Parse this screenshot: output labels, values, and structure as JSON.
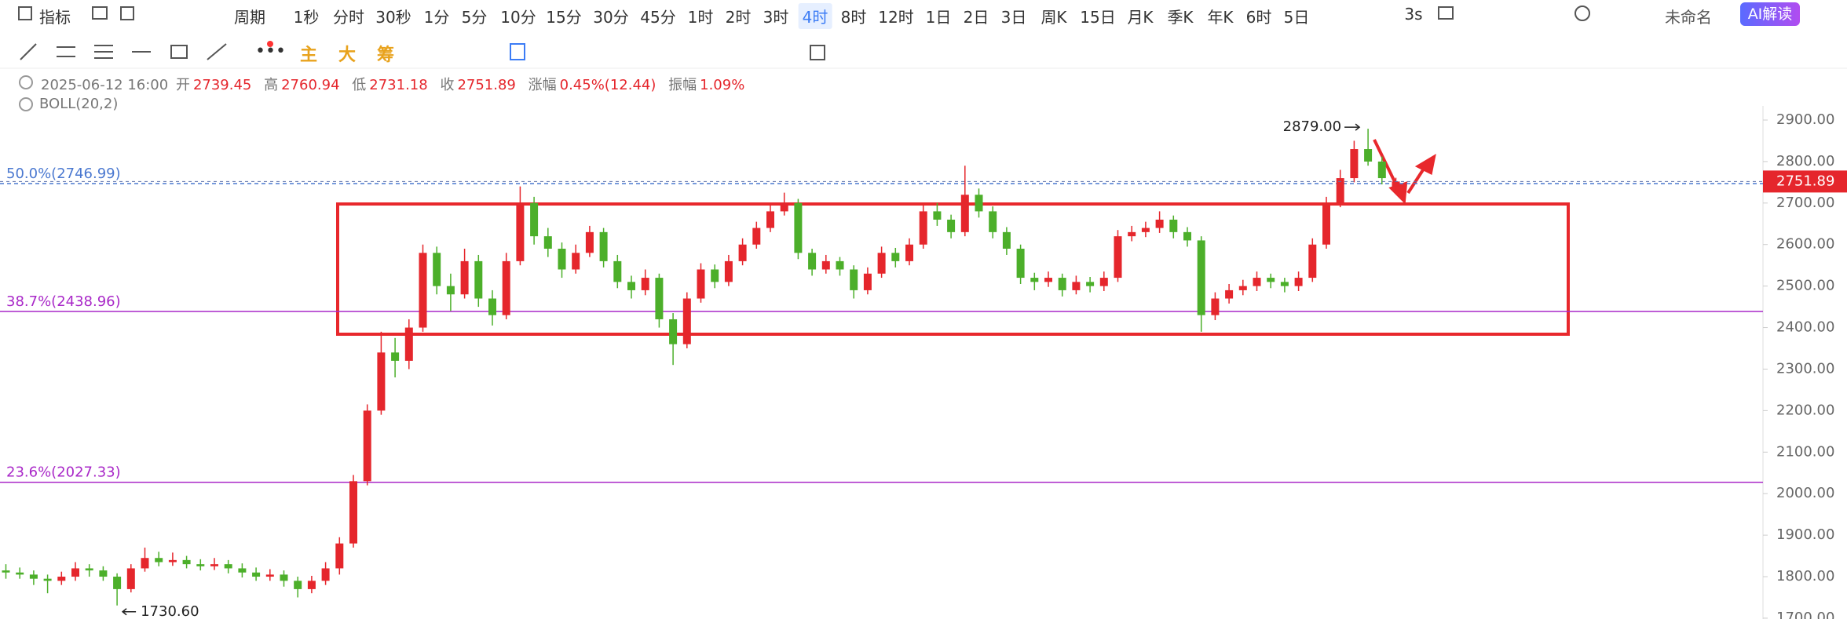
{
  "toolbar": {
    "indicator": "指标",
    "period": "周期",
    "intervals": [
      "1秒",
      "分时",
      "30秒",
      "1分",
      "5分",
      "10分",
      "15分",
      "30分",
      "45分",
      "1时",
      "2时",
      "3时",
      "4时",
      "8时",
      "12时",
      "1日",
      "2日",
      "3日",
      "周K",
      "15日",
      "月K",
      "季K",
      "年K",
      "6时",
      "5日"
    ],
    "active_interval": 12,
    "refresh": "3s",
    "layout_name": "未命名",
    "ai_button": "AI解读"
  },
  "drawing_toolbar": {
    "buttons": [
      "主",
      "大",
      "筹"
    ]
  },
  "info": {
    "datetime": "2025-06-12 16:00",
    "open_label": "开",
    "high_label": "高",
    "low_label": "低",
    "close_label": "收",
    "change_label": "涨幅",
    "change": "0.45%(12.44)",
    "amplitude_label": "振幅",
    "amplitude": "1.09%",
    "indicator": "BOLL(20,2)"
  },
  "chart_data": {
    "type": "candlestick",
    "up_color": "#e5262c",
    "down_color": "#4caf2a",
    "ylim": [
      1698,
      2934
    ],
    "yticks": [
      {
        "value": 1700,
        "label": "1700.00"
      },
      {
        "value": 1800,
        "label": "1800.00"
      },
      {
        "value": 1900,
        "label": "1900.00"
      },
      {
        "value": 2000,
        "label": "2000.00"
      },
      {
        "value": 2100,
        "label": "2100.00"
      },
      {
        "value": 2200,
        "label": "2200.00"
      },
      {
        "value": 2300,
        "label": "2300.00"
      },
      {
        "value": 2400,
        "label": "2400.00"
      },
      {
        "value": 2500,
        "label": "2500.00"
      },
      {
        "value": 2600,
        "label": "2600.00"
      },
      {
        "value": 2700,
        "label": "2700.00"
      },
      {
        "value": 2800,
        "label": "2800.00"
      },
      {
        "value": 2900,
        "label": "2900.00"
      }
    ],
    "levels": [
      {
        "label": "50.0%(2746.99)",
        "value": 2746.99,
        "color": "#4a78d0",
        "dashed": true
      },
      {
        "label": "38.7%(2438.96)",
        "value": 2438.96,
        "color": "#a928c8",
        "dashed": false
      },
      {
        "label": "23.6%(2027.33)",
        "value": 2027.33,
        "color": "#a928c8",
        "dashed": false
      }
    ],
    "max_label": {
      "value": 2879,
      "label": "2879.00"
    },
    "min_label": {
      "value": 1730.6,
      "label": "1730.60"
    },
    "candles": [
      [
        1815,
        1830,
        1795,
        1810
      ],
      [
        1810,
        1822,
        1795,
        1805
      ],
      [
        1805,
        1815,
        1780,
        1795
      ],
      [
        1795,
        1805,
        1760,
        1790
      ],
      [
        1790,
        1812,
        1780,
        1800
      ],
      [
        1800,
        1835,
        1790,
        1820
      ],
      [
        1820,
        1830,
        1800,
        1815
      ],
      [
        1815,
        1825,
        1790,
        1800
      ],
      [
        1800,
        1808,
        1730.6,
        1770
      ],
      [
        1770,
        1830,
        1762,
        1820
      ],
      [
        1820,
        1870,
        1812,
        1845
      ],
      [
        1845,
        1860,
        1825,
        1835
      ],
      [
        1835,
        1858,
        1826,
        1840
      ],
      [
        1840,
        1850,
        1820,
        1830
      ],
      [
        1830,
        1842,
        1815,
        1825
      ],
      [
        1825,
        1845,
        1816,
        1830
      ],
      [
        1830,
        1840,
        1808,
        1820
      ],
      [
        1820,
        1832,
        1798,
        1810
      ],
      [
        1810,
        1822,
        1790,
        1800
      ],
      [
        1800,
        1818,
        1790,
        1805
      ],
      [
        1805,
        1815,
        1776,
        1790
      ],
      [
        1790,
        1800,
        1750,
        1770
      ],
      [
        1770,
        1802,
        1760,
        1790
      ],
      [
        1790,
        1835,
        1780,
        1820
      ],
      [
        1820,
        1895,
        1805,
        1880
      ],
      [
        1880,
        2045,
        1870,
        2030
      ],
      [
        2030,
        2215,
        2020,
        2200
      ],
      [
        2200,
        2390,
        2190,
        2340
      ],
      [
        2340,
        2375,
        2280,
        2320
      ],
      [
        2320,
        2420,
        2300,
        2400
      ],
      [
        2400,
        2600,
        2390,
        2580
      ],
      [
        2580,
        2595,
        2480,
        2500
      ],
      [
        2500,
        2530,
        2440,
        2480
      ],
      [
        2480,
        2590,
        2470,
        2560
      ],
      [
        2560,
        2575,
        2450,
        2470
      ],
      [
        2470,
        2490,
        2405,
        2430
      ],
      [
        2430,
        2580,
        2420,
        2560
      ],
      [
        2560,
        2740,
        2550,
        2700
      ],
      [
        2700,
        2715,
        2600,
        2620
      ],
      [
        2620,
        2640,
        2570,
        2590
      ],
      [
        2590,
        2605,
        2520,
        2540
      ],
      [
        2540,
        2600,
        2530,
        2580
      ],
      [
        2580,
        2645,
        2570,
        2630
      ],
      [
        2630,
        2640,
        2545,
        2560
      ],
      [
        2560,
        2575,
        2495,
        2510
      ],
      [
        2510,
        2525,
        2470,
        2490
      ],
      [
        2490,
        2540,
        2478,
        2520
      ],
      [
        2520,
        2530,
        2400,
        2420
      ],
      [
        2420,
        2435,
        2310,
        2360
      ],
      [
        2360,
        2485,
        2350,
        2470
      ],
      [
        2470,
        2555,
        2460,
        2540
      ],
      [
        2540,
        2552,
        2495,
        2510
      ],
      [
        2510,
        2575,
        2500,
        2560
      ],
      [
        2560,
        2615,
        2550,
        2600
      ],
      [
        2600,
        2655,
        2590,
        2640
      ],
      [
        2640,
        2695,
        2630,
        2680
      ],
      [
        2680,
        2725,
        2670,
        2700
      ],
      [
        2700,
        2710,
        2565,
        2580
      ],
      [
        2580,
        2590,
        2525,
        2540
      ],
      [
        2540,
        2575,
        2530,
        2560
      ],
      [
        2560,
        2570,
        2525,
        2540
      ],
      [
        2540,
        2550,
        2470,
        2490
      ],
      [
        2490,
        2545,
        2480,
        2530
      ],
      [
        2530,
        2595,
        2520,
        2580
      ],
      [
        2580,
        2592,
        2545,
        2560
      ],
      [
        2560,
        2615,
        2550,
        2600
      ],
      [
        2600,
        2695,
        2590,
        2680
      ],
      [
        2680,
        2700,
        2645,
        2660
      ],
      [
        2660,
        2672,
        2615,
        2630
      ],
      [
        2630,
        2790,
        2620,
        2720
      ],
      [
        2720,
        2735,
        2665,
        2680
      ],
      [
        2680,
        2692,
        2615,
        2630
      ],
      [
        2630,
        2642,
        2575,
        2590
      ],
      [
        2590,
        2600,
        2505,
        2520
      ],
      [
        2520,
        2532,
        2490,
        2510
      ],
      [
        2510,
        2535,
        2498,
        2520
      ],
      [
        2520,
        2530,
        2475,
        2490
      ],
      [
        2490,
        2525,
        2480,
        2510
      ],
      [
        2510,
        2522,
        2485,
        2500
      ],
      [
        2500,
        2535,
        2488,
        2520
      ],
      [
        2520,
        2635,
        2510,
        2620
      ],
      [
        2620,
        2645,
        2608,
        2630
      ],
      [
        2630,
        2655,
        2618,
        2640
      ],
      [
        2640,
        2680,
        2628,
        2660
      ],
      [
        2660,
        2670,
        2615,
        2630
      ],
      [
        2630,
        2642,
        2595,
        2610
      ],
      [
        2610,
        2620,
        2390,
        2430
      ],
      [
        2430,
        2485,
        2418,
        2470
      ],
      [
        2470,
        2505,
        2458,
        2490
      ],
      [
        2490,
        2515,
        2478,
        2500
      ],
      [
        2500,
        2535,
        2488,
        2520
      ],
      [
        2520,
        2530,
        2495,
        2510
      ],
      [
        2510,
        2520,
        2485,
        2500
      ],
      [
        2500,
        2535,
        2488,
        2520
      ],
      [
        2520,
        2615,
        2510,
        2600
      ],
      [
        2600,
        2715,
        2590,
        2700
      ],
      [
        2700,
        2780,
        2690,
        2760
      ],
      [
        2760,
        2850,
        2750,
        2830
      ],
      [
        2830,
        2879,
        2790,
        2800
      ],
      [
        2800,
        2812,
        2745,
        2760
      ],
      [
        2739.45,
        2760.94,
        2731.18,
        2751.89
      ]
    ]
  }
}
